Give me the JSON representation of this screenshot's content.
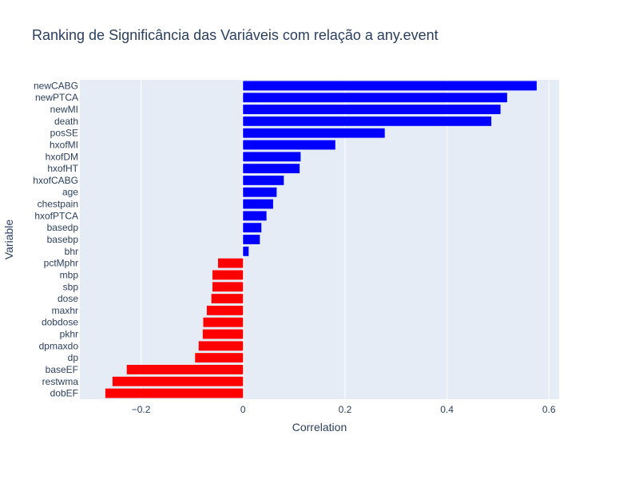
{
  "chart_data": {
    "type": "bar",
    "orientation": "horizontal",
    "title": "Ranking de Significância das Variáveis com relação a any.event",
    "xlabel": "Correlation",
    "ylabel": "Variable",
    "xlim": [
      -0.32,
      0.62
    ],
    "x_ticks": [
      -0.2,
      0,
      0.2,
      0.4,
      0.6
    ],
    "x_tick_labels": [
      "−0.2",
      "0",
      "0.2",
      "0.4",
      "0.6"
    ],
    "grid": true,
    "colors": {
      "positive": "#0000ff",
      "negative": "#ff0000",
      "plot_bg": "#e5ecf6",
      "text": "#2a3f5f"
    },
    "categories": [
      "newCABG",
      "newPTCA",
      "newMI",
      "death",
      "posSE",
      "hxofMI",
      "hxofDM",
      "hxofHT",
      "hxofCABG",
      "age",
      "chestpain",
      "hxofPTCA",
      "basedp",
      "basebp",
      "bhr",
      "pctMphr",
      "mbp",
      "sbp",
      "dose",
      "maxhr",
      "dobdose",
      "pkhr",
      "dpmaxdo",
      "dp",
      "baseEF",
      "restwma",
      "dobEF"
    ],
    "values": [
      0.576,
      0.518,
      0.505,
      0.487,
      0.278,
      0.181,
      0.113,
      0.111,
      0.08,
      0.066,
      0.059,
      0.046,
      0.036,
      0.033,
      0.011,
      -0.049,
      -0.06,
      -0.06,
      -0.062,
      -0.071,
      -0.078,
      -0.079,
      -0.087,
      -0.094,
      -0.228,
      -0.256,
      -0.27
    ]
  }
}
